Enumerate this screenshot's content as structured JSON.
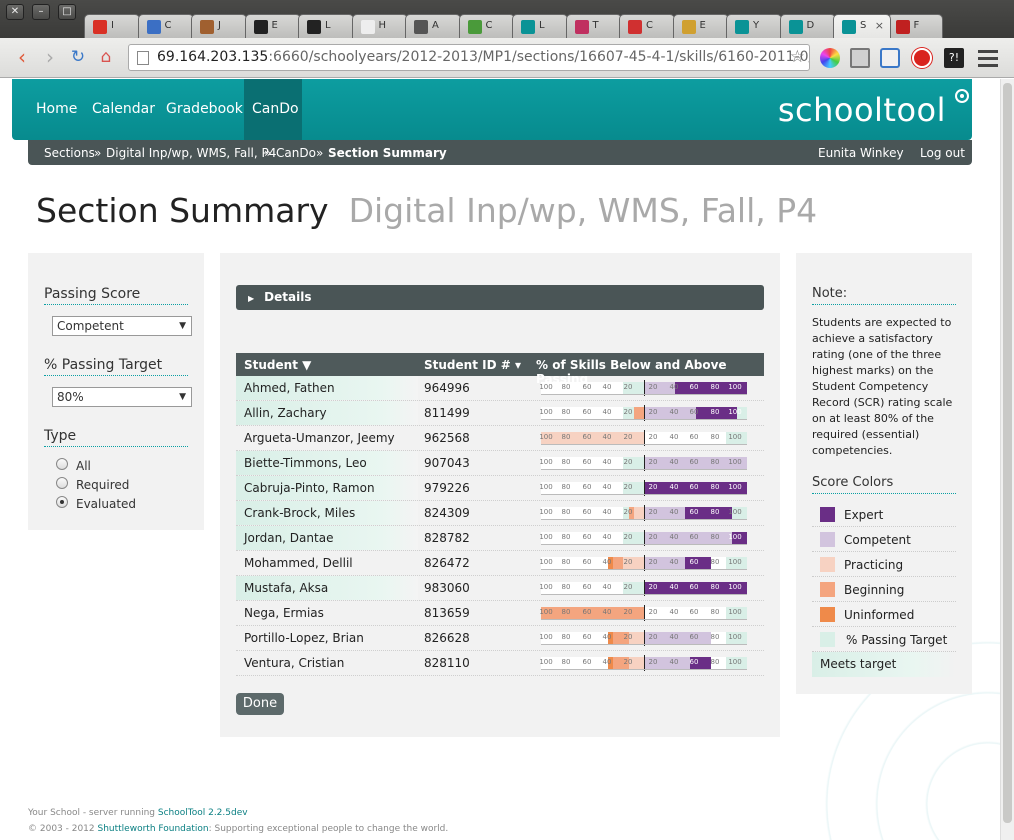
{
  "browser": {
    "url_host": "69.164.203.135",
    "url_rest": ":6660/schoolyears/2012-2013/MP1/sections/16607-45-4-1/skills/6160-2011-0/gr",
    "tabs": [
      {
        "title": "I",
        "color": "#d93025"
      },
      {
        "title": "C",
        "color": "#3b6fc4"
      },
      {
        "title": "J",
        "color": "#a06030"
      },
      {
        "title": "E",
        "color": "#222222"
      },
      {
        "title": "L",
        "color": "#222222"
      },
      {
        "title": "H",
        "color": "#eeeeee"
      },
      {
        "title": "A",
        "color": "#555555"
      },
      {
        "title": "C",
        "color": "#4a9a3a"
      },
      {
        "title": "L",
        "color": "#0a9396"
      },
      {
        "title": "T",
        "color": "#c03060"
      },
      {
        "title": "C",
        "color": "#d03030"
      },
      {
        "title": "E",
        "color": "#d0a030"
      },
      {
        "title": "Y",
        "color": "#0a9396"
      },
      {
        "title": "D",
        "color": "#0a9396"
      },
      {
        "title": "S",
        "color": "#0a9396"
      },
      {
        "title": "F",
        "color": "#c02020"
      }
    ],
    "active_tab": 14
  },
  "nav": {
    "items": [
      "Home",
      "Calendar",
      "Gradebook",
      "CanDo"
    ],
    "active": "CanDo",
    "logo": "schooltool"
  },
  "breadcrumb": {
    "items": [
      "Sections",
      "Digital Inp/wp, WMS, Fall, P4",
      "CanDo",
      "Section Summary"
    ],
    "separator": "»",
    "user": "Eunita Winkey",
    "logout": "Log out"
  },
  "page": {
    "title": "Section Summary",
    "subtitle": "Digital Inp/wp, WMS, Fall, P4"
  },
  "filters": {
    "passing_score_label": "Passing Score",
    "passing_score_value": "Competent",
    "passing_target_label": "% Passing Target",
    "passing_target_value": "80%",
    "type_label": "Type",
    "type_options": [
      "All",
      "Required",
      "Evaluated"
    ],
    "type_selected": "Evaluated"
  },
  "details_label": "Details",
  "table": {
    "columns": [
      "Student ▼",
      "Student ID # ▾",
      "% of Skills Below and Above Passing"
    ],
    "ticks_left": [
      "100",
      "80",
      "60",
      "40",
      "20"
    ],
    "ticks_right": [
      "20",
      "40",
      "60",
      "80",
      "100"
    ],
    "target_pct": 80,
    "rows": [
      {
        "name": "Ahmed, Fathen",
        "id": "964996",
        "meets": true,
        "below": {
          "uninformed": 0,
          "beginning": 0,
          "practicing": 0
        },
        "above": {
          "competent": 30,
          "expert": 70
        }
      },
      {
        "name": "Allin, Zachary",
        "id": "811499",
        "meets": true,
        "below": {
          "uninformed": 0,
          "beginning": 10,
          "practicing": 0
        },
        "above": {
          "competent": 50,
          "expert": 40
        }
      },
      {
        "name": "Argueta-Umanzor, Jeemy",
        "id": "962568",
        "meets": false,
        "below": {
          "uninformed": 0,
          "beginning": 0,
          "practicing": 100
        },
        "above": {
          "competent": 0,
          "expert": 0
        }
      },
      {
        "name": "Biette-Timmons, Leo",
        "id": "907043",
        "meets": true,
        "below": {
          "uninformed": 0,
          "beginning": 0,
          "practicing": 0
        },
        "above": {
          "competent": 100,
          "expert": 0
        }
      },
      {
        "name": "Cabruja-Pinto, Ramon",
        "id": "979226",
        "meets": true,
        "below": {
          "uninformed": 0,
          "beginning": 0,
          "practicing": 0
        },
        "above": {
          "competent": 0,
          "expert": 100
        }
      },
      {
        "name": "Crank-Brock, Miles",
        "id": "824309",
        "meets": true,
        "below": {
          "uninformed": 0,
          "beginning": 5,
          "practicing": 10
        },
        "above": {
          "competent": 40,
          "expert": 45
        }
      },
      {
        "name": "Jordan, Dantae",
        "id": "828782",
        "meets": true,
        "below": {
          "uninformed": 0,
          "beginning": 0,
          "practicing": 0
        },
        "above": {
          "competent": 85,
          "expert": 15
        }
      },
      {
        "name": "Mohammed, Dellil",
        "id": "826472",
        "meets": false,
        "below": {
          "uninformed": 5,
          "beginning": 10,
          "practicing": 20
        },
        "above": {
          "competent": 40,
          "expert": 25
        }
      },
      {
        "name": "Mustafa, Aksa",
        "id": "983060",
        "meets": true,
        "below": {
          "uninformed": 0,
          "beginning": 0,
          "practicing": 0
        },
        "above": {
          "competent": 0,
          "expert": 100
        }
      },
      {
        "name": "Nega, Ermias",
        "id": "813659",
        "meets": false,
        "below": {
          "uninformed": 0,
          "beginning": 100,
          "practicing": 0
        },
        "above": {
          "competent": 0,
          "expert": 0
        }
      },
      {
        "name": "Portillo-Lopez, Brian",
        "id": "826628",
        "meets": false,
        "below": {
          "uninformed": 5,
          "beginning": 15,
          "practicing": 15
        },
        "above": {
          "competent": 65,
          "expert": 0
        }
      },
      {
        "name": "Ventura, Cristian",
        "id": "828110",
        "meets": false,
        "below": {
          "uninformed": 5,
          "beginning": 15,
          "practicing": 15
        },
        "above": {
          "competent": 45,
          "expert": 20
        }
      }
    ]
  },
  "done_label": "Done",
  "note": {
    "title": "Note:",
    "text": "Students are expected to achieve a satisfactory rating (one of the three highest marks) on the Student Competency Record (SCR) rating scale on at least 80% of the required (essential) competencies."
  },
  "score_colors": {
    "title": "Score Colors",
    "items": [
      {
        "label": "Expert",
        "color": "#6a2e86"
      },
      {
        "label": "Competent",
        "color": "#d2c4de"
      },
      {
        "label": "Practicing",
        "color": "#f7d2c2"
      },
      {
        "label": "Beginning",
        "color": "#f4a57f"
      },
      {
        "label": "Uninformed",
        "color": "#ef8a4a"
      },
      {
        "label": "% Passing Target",
        "color": "#d9efe7"
      }
    ],
    "meets_target": "Meets target"
  },
  "footer": {
    "line1_prefix": "Your School - server running ",
    "line1_link": "SchoolTool 2.2.5dev",
    "line2_prefix": "© 2003 - 2012 ",
    "line2_link": "Shuttleworth Foundation",
    "line2_suffix": ": Supporting exceptional people to change the world."
  }
}
